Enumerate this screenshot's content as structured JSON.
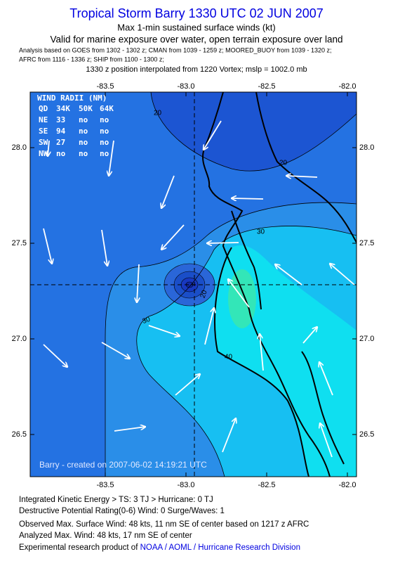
{
  "header": {
    "title": "Tropical Storm Barry 1330 UTC 02 JUN 2007",
    "subtitle": "Max 1-min sustained surface winds (kt)",
    "validity": "Valid for marine exposure over water, open terrain exposure over land",
    "analysis": [
      "Analysis based on  GOES from 1302 - 1302 z;  CMAN from 1039 - 1259 z;  MOORED_BUOY from 1039 - 1320 z;",
      "AFRC from 1116 - 1336 z;  SHIP from 1100 - 1300 z;"
    ],
    "position": "1330 z position interpolated from 1220 Vortex; mslp = 1002.0 mb"
  },
  "map": {
    "x_ticks": [
      "-83.5",
      "-83.0",
      "-82.5",
      "-82.0"
    ],
    "y_ticks": [
      "28.0",
      "27.5",
      "27.0",
      "26.5"
    ],
    "wind_radii": {
      "title": "WIND RADII (NM)",
      "header": [
        "QD",
        "34K",
        "50K",
        "64K"
      ],
      "rows": [
        [
          "NE",
          "33",
          "no",
          "no"
        ],
        [
          "SE",
          "94",
          "no",
          "no"
        ],
        [
          "SW",
          "27",
          "no",
          "no"
        ],
        [
          "NW",
          "no",
          "no",
          "no"
        ]
      ]
    },
    "contour_labels": [
      "20",
      "20",
      "30",
      "20",
      "30",
      "40"
    ],
    "credit": "Barry - created on 2007-06-02 14:19:21 UTC"
  },
  "footer": {
    "lines": [
      "Integrated Kinetic Energy > TS: 3 TJ > Hurricane: 0 TJ",
      "Destructive Potential Rating(0-6) Wind: 0 Surge/Waves: 1",
      "Observed Max. Surface Wind: 48 kts, 11 nm SE of center based on 1217 z AFRC",
      "Analyzed Max. Wind: 48 kts, 17 nm SE of center"
    ],
    "credit": [
      "Experimental research product of ",
      "NOAA / AOML / Hurricane Research Division"
    ]
  }
}
